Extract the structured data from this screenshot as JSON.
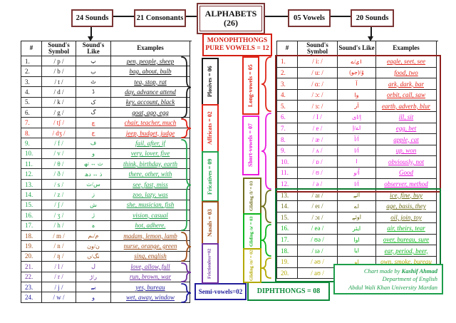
{
  "header": {
    "nodes": [
      {
        "id": "sounds-24",
        "label": "24 Sounds"
      },
      {
        "id": "consonants-21",
        "label": "21 Consonants"
      },
      {
        "id": "alphabets",
        "label": "ALPHABETS",
        "sub": "(26)"
      },
      {
        "id": "vowels-05",
        "label": "05 Vowels"
      },
      {
        "id": "sounds-20",
        "label": "20 Sounds"
      }
    ]
  },
  "monophthongs_box": {
    "line1": "MONOPHTHONGS",
    "line2": "PURE VOWELS = 12",
    "color": "#d42015"
  },
  "diphthongs_box": {
    "label": "DIPHTHONGS = 08",
    "color": "#0e8a3a"
  },
  "consonants": {
    "columns": [
      "#",
      "Sound's Symbol",
      "Sound's Like",
      "Examples"
    ],
    "groups": [
      {
        "id": "plosives",
        "label": "Plosives = 06",
        "color": "#1a1a1a"
      },
      {
        "id": "affricates",
        "label": "Affricats = 02",
        "color": "#e02519"
      },
      {
        "id": "fricatives",
        "label": "Fricatives = 09",
        "color": "#22a44e"
      },
      {
        "id": "nasals",
        "label": "Nasals = 03",
        "color": "#a0501d"
      },
      {
        "id": "frictionless",
        "label": "Frictionless=02",
        "color": "#7030a0"
      },
      {
        "id": "semivowels",
        "label": "Semi-vowels=02",
        "color": "#211e9b"
      }
    ],
    "rows": [
      {
        "n": "1.",
        "sym": "/ p /",
        "like": "پ",
        "ex": "pen, people, sheep",
        "g": "plosives"
      },
      {
        "n": "2.",
        "sym": "/ b /",
        "like": "ب",
        "ex": "bag, about, bulb",
        "g": "plosives"
      },
      {
        "n": "3.",
        "sym": "/ t /",
        "like": "ٹ",
        "ex": "tea, stop, rat",
        "g": "plosives"
      },
      {
        "n": "4.",
        "sym": "/ d /",
        "like": "ڈ",
        "ex": "day, advance attend",
        "g": "plosives"
      },
      {
        "n": "5.",
        "sym": "/ k /",
        "like": "ک",
        "ex": "key, account, black",
        "g": "plosives"
      },
      {
        "n": "6.",
        "sym": "/ g /",
        "like": "گ",
        "ex": "goat, ago, egg",
        "g": "plosives"
      },
      {
        "n": "7.",
        "sym": "/ tʃ /",
        "like": "چ",
        "ex": "chair, teacher, much",
        "g": "affricates"
      },
      {
        "n": "8.",
        "sym": "/ dʒ /",
        "like": "ج",
        "ex": "jeep, budget, judge",
        "g": "affricates"
      },
      {
        "n": "9.",
        "sym": "/ f /",
        "like": "ف",
        "ex": "fail, after, if",
        "g": "fricatives"
      },
      {
        "n": "10.",
        "sym": "/ v /",
        "like": "و",
        "ex": "very, lover, five",
        "g": "fricatives"
      },
      {
        "n": "11.",
        "sym": "/ θ /",
        "like": "ث ↔ تھ",
        "ex": "think, birthday, earth",
        "g": "fricatives"
      },
      {
        "n": "12.",
        "sym": "/ ð /",
        "like": "ذ ↔ دھ",
        "ex": "there, other, with",
        "g": "fricatives"
      },
      {
        "n": "13.",
        "sym": "/ s /",
        "like": "س/ث",
        "ex": "see, fast, miss",
        "g": "fricatives"
      },
      {
        "n": "14.",
        "sym": "/ z /",
        "like": "ز",
        "ex": "zoo, lazy, was",
        "g": "fricatives"
      },
      {
        "n": "15.",
        "sym": "/ ʃ /",
        "like": "ش",
        "ex": "she, musician, fish",
        "g": "fricatives"
      },
      {
        "n": "16.",
        "sym": "/ ʒ /",
        "like": "ژ",
        "ex": "vision, casual",
        "g": "fricatives"
      },
      {
        "n": "17.",
        "sym": "/ h /",
        "like": "ہ",
        "ex": "hot, adhere.",
        "g": "fricatives"
      },
      {
        "n": "18.",
        "sym": "/ m /",
        "like": "م/ـم",
        "ex": "madam, lemon, lamb",
        "g": "nasals"
      },
      {
        "n": "19.",
        "sym": "/ n /",
        "like": "ن/ون",
        "ex": "nurse, orange, green",
        "g": "nasals"
      },
      {
        "n": "20.",
        "sym": "/ ŋ /",
        "like": "نگ/ں",
        "ex": "sing, english",
        "g": "nasals"
      },
      {
        "n": "21.",
        "sym": "/ l /",
        "like": "ل",
        "ex": "love, allow, full",
        "g": "frictionless"
      },
      {
        "n": "22.",
        "sym": "/ r /",
        "like": "ر/ڑ",
        "ex": "run, brown, war",
        "g": "frictionless"
      },
      {
        "n": "23.",
        "sym": "/ j /",
        "like": "یے",
        "ex": "yes, bureau",
        "g": "semivowels"
      },
      {
        "n": "24.",
        "sym": "/ w /",
        "like": "و",
        "ex": "wet, away, window",
        "g": "semivowels"
      }
    ]
  },
  "vowels": {
    "columns": [
      "#",
      "Sound's Symbol",
      "Sound's Like",
      "Examples"
    ],
    "groups": [
      {
        "id": "long",
        "label": "Long-vowels = 05",
        "color": "#e02519"
      },
      {
        "id": "short",
        "label": "Short-vowels = 07",
        "color": "#ea1cdc"
      },
      {
        "id": "gliding_i",
        "label": "Gliding /I/ = 03",
        "color": "#6e6c1a"
      },
      {
        "id": "gliding_e",
        "label": "Gliding /ə/ = 03",
        "color": "#0cb41c"
      },
      {
        "id": "gliding_u",
        "label": "Gliding /ʊ/ = 02",
        "color": "#b3a900"
      }
    ],
    "frames": {
      "monophthongs": "#8f1f1c",
      "diphthongs": "#0e7a33"
    },
    "rows": [
      {
        "n": "1.",
        "sym": "/ i: /",
        "like": "ای/ے",
        "ex": "eagle, seet, see",
        "g": "long"
      },
      {
        "n": "2.",
        "sym": "/ u: /",
        "like": "وُ/(جو)",
        "ex": "food, two",
        "g": "long"
      },
      {
        "n": "3.",
        "sym": "/ ɑ: /",
        "like": "آ",
        "ex": "ark, dark, bar",
        "g": "long"
      },
      {
        "n": "4.",
        "sym": "/ ɔ: /",
        "like": "وا",
        "ex": "orbit, call, saw",
        "g": "long"
      },
      {
        "n": "5.",
        "sym": "/ ɜ: /",
        "like": "اَر",
        "ex": "earth, adverb, blur",
        "g": "long"
      },
      {
        "n": "6.",
        "sym": "/ I /",
        "like": "اِ/ای",
        "ex": "ill, sit",
        "g": "short"
      },
      {
        "n": "7.",
        "sym": "/ e /",
        "like": "اے/اِ",
        "ex": "egg, bet",
        "g": "short"
      },
      {
        "n": "8.",
        "sym": "/ æ /",
        "like": "اَ/آ",
        "ex": "apple, cat",
        "g": "short"
      },
      {
        "n": "9.",
        "sym": "/ ʌ /",
        "like": "اَ/ا",
        "ex": "up, won",
        "g": "short"
      },
      {
        "n": "10.",
        "sym": "/ ɒ /",
        "like": "ا",
        "ex": "obviously, not",
        "g": "short"
      },
      {
        "n": "11.",
        "sym": "/ ʊ /",
        "like": "اُ/و",
        "ex": "Good",
        "g": "short"
      },
      {
        "n": "12.",
        "sym": "/ ə /",
        "like": "اَ/ا",
        "ex": "observer, method",
        "g": "short"
      },
      {
        "n": "13.",
        "sym": "/ aɪ /",
        "like": "آئے",
        "ex": "ice, fine, buy",
        "g": "gliding_i"
      },
      {
        "n": "14.",
        "sym": "/ eɪ /",
        "like": "اے",
        "ex": "age, basis, they",
        "g": "gliding_i"
      },
      {
        "n": "15.",
        "sym": "/ ɔɪ /",
        "like": "اوئے",
        "ex": "oil, join, toy",
        "g": "gliding_i"
      },
      {
        "n": "16.",
        "sym": "/ eə /",
        "like": "ایئر",
        "ex": "air, theirs, tear",
        "g": "gliding_e"
      },
      {
        "n": "17.",
        "sym": "/ ʊə /",
        "like": "اوا",
        "ex": "over, bureau, sure",
        "g": "gliding_e"
      },
      {
        "n": "18.",
        "sym": "/ ɪə /",
        "like": "ایا",
        "ex": "ear, period, beer,",
        "g": "gliding_e"
      },
      {
        "n": "19.",
        "sym": "/ əʊ /",
        "like": "او",
        "ex": "own, smoke, bureau",
        "g": "gliding_u"
      },
      {
        "n": "20.",
        "sym": "/ aʊ /",
        "like": "آؤ",
        "ex": "out, coward, now",
        "g": "gliding_u"
      }
    ]
  },
  "credit": {
    "line1_prefix": "Chart made by ",
    "line1_name": "Kashif Ahmad",
    "line2": "Department of English",
    "line3": "Abdul Wali Khan University Mardan",
    "color": "#1d9e4b"
  }
}
